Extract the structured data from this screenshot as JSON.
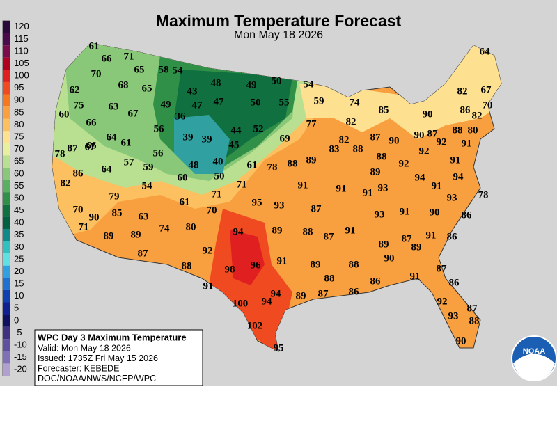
{
  "header": {
    "title": "Maximum Temperature Forecast",
    "subtitle": "Mon May 18 2026"
  },
  "legend": {
    "values": [
      120,
      115,
      110,
      105,
      100,
      95,
      90,
      85,
      80,
      75,
      70,
      65,
      60,
      55,
      50,
      45,
      40,
      35,
      30,
      25,
      20,
      15,
      10,
      5,
      0,
      -5,
      -10,
      -15,
      -20
    ],
    "colors": [
      "#2a0a3a",
      "#4b0a4b",
      "#7a0a4a",
      "#b00020",
      "#e02020",
      "#f04a20",
      "#f87820",
      "#faa040",
      "#fcc060",
      "#fde090",
      "#e8f0a0",
      "#b8e090",
      "#88c878",
      "#58b060",
      "#309048",
      "#107040",
      "#006040",
      "#108888",
      "#30c0c0",
      "#60e0e0",
      "#30a0e0",
      "#2070d0",
      "#1040b0",
      "#102090",
      "#101060",
      "#403080",
      "#6050a0",
      "#8070b8",
      "#b0a0d0"
    ]
  },
  "temperatures": [
    61,
    66,
    71,
    70,
    65,
    58,
    54,
    62,
    68,
    65,
    43,
    48,
    49,
    50,
    54,
    75,
    63,
    67,
    49,
    47,
    47,
    50,
    55,
    59,
    74,
    60,
    66,
    56,
    36,
    44,
    52,
    77,
    82,
    85,
    90,
    86,
    82,
    67,
    70,
    82,
    64,
    66,
    64,
    61,
    39,
    39,
    45,
    69,
    82,
    87,
    90,
    90,
    87,
    88,
    80,
    78,
    87,
    67,
    56,
    92,
    92,
    91,
    83,
    88,
    86,
    64,
    57,
    59,
    48,
    40,
    61,
    78,
    88,
    89,
    89,
    92,
    88,
    91,
    82,
    60,
    50,
    71,
    91,
    91,
    91,
    93,
    94,
    94,
    91,
    78,
    93,
    79,
    54,
    71,
    95,
    93,
    87,
    61,
    70,
    85,
    90,
    63,
    70,
    93,
    91,
    90,
    86,
    71,
    74,
    80,
    94,
    89,
    88,
    87,
    91,
    89,
    89,
    92,
    87,
    89,
    87,
    89,
    91,
    86,
    98,
    96,
    91,
    89,
    88,
    90,
    87,
    88,
    91,
    88,
    86,
    86,
    91,
    86,
    100,
    94,
    94,
    89,
    87,
    92,
    87,
    93,
    88,
    102,
    95,
    90
  ],
  "info_box": {
    "title": "WPC Day 3 Maximum Temperature",
    "lines": [
      "Valid: Mon May 18 2026",
      "Issued: 1735Z Fri May 15 2026",
      "Forecaster: KEBEDE",
      "DOC/NOAA/NWS/NCEP/WPC"
    ]
  },
  "logo": {
    "text": "NOAA"
  }
}
